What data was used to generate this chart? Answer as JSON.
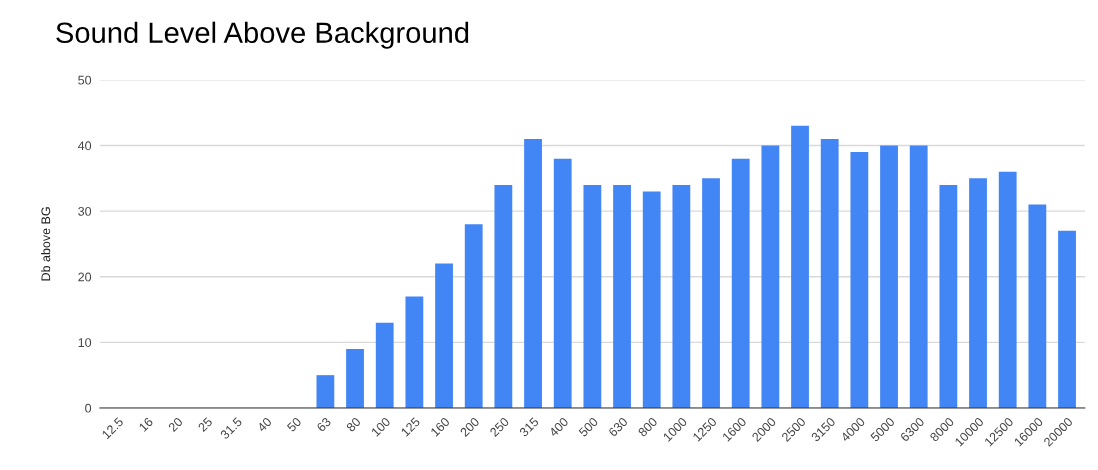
{
  "chart_data": {
    "type": "bar",
    "title": "Sound Level Above Background",
    "ylabel": "Db above BG",
    "categories": [
      "12.5",
      "16",
      "20",
      "25",
      "31.5",
      "40",
      "50",
      "63",
      "80",
      "100",
      "125",
      "160",
      "200",
      "250",
      "315",
      "400",
      "500",
      "630",
      "800",
      "1000",
      "1250",
      "1600",
      "2000",
      "2500",
      "3150",
      "4000",
      "5000",
      "6300",
      "8000",
      "10000",
      "12500",
      "16000",
      "20000"
    ],
    "values": [
      0,
      0,
      0,
      0,
      0,
      0,
      0,
      5,
      9,
      13,
      17,
      22,
      28,
      34,
      41,
      38,
      34,
      34,
      33,
      34,
      35,
      38,
      40,
      43,
      41,
      39,
      40,
      40,
      34,
      35,
      36,
      31,
      27
    ],
    "color": "#4285f4",
    "ylim": [
      0,
      50
    ],
    "yticks": [
      0,
      10,
      20,
      30,
      40,
      50
    ],
    "grid": "y",
    "legend": false
  }
}
